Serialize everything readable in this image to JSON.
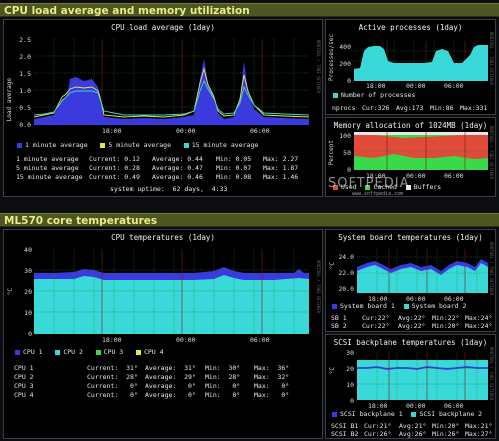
{
  "sections": {
    "cpu": "CPU load average and memory utilization",
    "temps": "ML570 core temperatures"
  },
  "watermark": {
    "main": "SOFTPEDIA",
    "sub": "www.softpedia.com"
  },
  "rrd_tag": "RRDTOOL / TOBI OETIKER",
  "cpu_load": {
    "title": "CPU load average  (1day)",
    "ylabel": "Load average",
    "yticks": [
      "2.5",
      "2.0",
      "1.5",
      "1.0",
      "0.5",
      "0.0"
    ],
    "xticks": [
      "18:00",
      "00:00",
      "06:00"
    ],
    "legend": [
      {
        "label": "1 minute average",
        "color": "#3a3adf"
      },
      {
        "label": "5 minute average",
        "color": "#e9e93a"
      },
      {
        "label": "15 minute average",
        "color": "#3ad9d9"
      }
    ],
    "stats": [
      {
        "name": "1 minute average",
        "current": "Current: 0.12",
        "average": "Average: 0.44",
        "min": "Min: 0.05",
        "max": "Max: 2.27"
      },
      {
        "name": "5 minute average",
        "current": "Current: 0.28",
        "average": "Average: 0.47",
        "min": "Min: 0.07",
        "max": "Max: 1.87"
      },
      {
        "name": "15 minute average",
        "current": "Current: 0.49",
        "average": "Average: 0.46",
        "min": "Min: 0.08",
        "max": "Max: 1.46"
      }
    ],
    "uptime": "system uptime:  62 days,  4:33"
  },
  "active_processes": {
    "title": "Active processes  (1day)",
    "ylabel": "Processes/sec",
    "yticks": [
      "400",
      "200",
      "0"
    ],
    "xticks": [
      "18:00",
      "00:00",
      "06:00"
    ],
    "legend": [
      {
        "label": "Number of processes",
        "color": "#3ad9d9"
      }
    ],
    "stats": {
      "name": "nprocs",
      "current": "Cur:326",
      "average": "Avg:173",
      "min": "Min:86",
      "max": "Max:331"
    }
  },
  "memory": {
    "title": "Memory allocation of 1024MB  (1day)",
    "ylabel": "Percent",
    "yticks": [
      "100",
      "50",
      "0"
    ],
    "xticks": [
      "18:00",
      "00:00",
      "06:00"
    ],
    "legend": [
      {
        "label": "Used",
        "color": "#e04a3a"
      },
      {
        "label": "Cached",
        "color": "#3ad94a"
      },
      {
        "label": "Buffers",
        "color": "#e8e8e8"
      }
    ]
  },
  "cpu_temps": {
    "title": "CPU temperatures  (1day)",
    "ylabel": "°C",
    "yticks": [
      "40",
      "30",
      "20",
      "10",
      "0"
    ],
    "xticks": [
      "18:00",
      "00:00",
      "06:00"
    ],
    "legend": [
      {
        "label": "CPU 1",
        "color": "#3a3adf"
      },
      {
        "label": "CPU 2",
        "color": "#3ad9d9"
      },
      {
        "label": "CPU 3",
        "color": "#3ad94a"
      },
      {
        "label": "CPU 4",
        "color": "#e9e93a"
      }
    ],
    "stats": [
      {
        "name": "CPU 1",
        "current": "Current:  31°",
        "average": "Average:  31°",
        "min": "Min:  30°",
        "max": "Max:  36°"
      },
      {
        "name": "CPU 2",
        "current": "Current:  28°",
        "average": "Average:  29°",
        "min": "Min:  28°",
        "max": "Max:  32°"
      },
      {
        "name": "CPU 3",
        "current": "Current:   0°",
        "average": "Average:   0°",
        "min": "Min:   0°",
        "max": "Max:   0°"
      },
      {
        "name": "CPU 4",
        "current": "Current:   0°",
        "average": "Average:   0°",
        "min": "Min:   0°",
        "max": "Max:   0°"
      }
    ]
  },
  "board_temps": {
    "title": "System board temperatures  (1day)",
    "ylabel": "°C",
    "yticks": [
      "24.0",
      "22.0",
      "20.0"
    ],
    "xticks": [
      "18:00",
      "00:00",
      "06:00"
    ],
    "legend": [
      {
        "label": "System board 1",
        "color": "#3a3adf"
      },
      {
        "label": "System board 2",
        "color": "#3ad9d9"
      }
    ],
    "stats": [
      {
        "name": "SB 1",
        "current": "Cur:22°",
        "average": "Avg:22°",
        "min": "Min:22°",
        "max": "Max:24°"
      },
      {
        "name": "SB 2",
        "current": "Cur:22°",
        "average": "Avg:22°",
        "min": "Min:20°",
        "max": "Max:24°"
      }
    ]
  },
  "scsi_temps": {
    "title": "SCSI backplane temperatures  (1day)",
    "ylabel": "°C",
    "yticks": [
      "30",
      "20",
      "10",
      "0"
    ],
    "xticks": [
      "18:00",
      "00:00",
      "06:00"
    ],
    "legend": [
      {
        "label": "SCSI backplane 1",
        "color": "#3a3adf"
      },
      {
        "label": "SCSI backplane 2",
        "color": "#3ad9d9"
      }
    ],
    "stats": [
      {
        "name": "SCSI B1",
        "current": "Cur:21°",
        "average": "Avg:21°",
        "min": "Min:20°",
        "max": "Max:21°"
      },
      {
        "name": "SCSI B2",
        "current": "Cur:26°",
        "average": "Avg:26°",
        "min": "Min:26°",
        "max": "Max:27°"
      }
    ]
  }
}
